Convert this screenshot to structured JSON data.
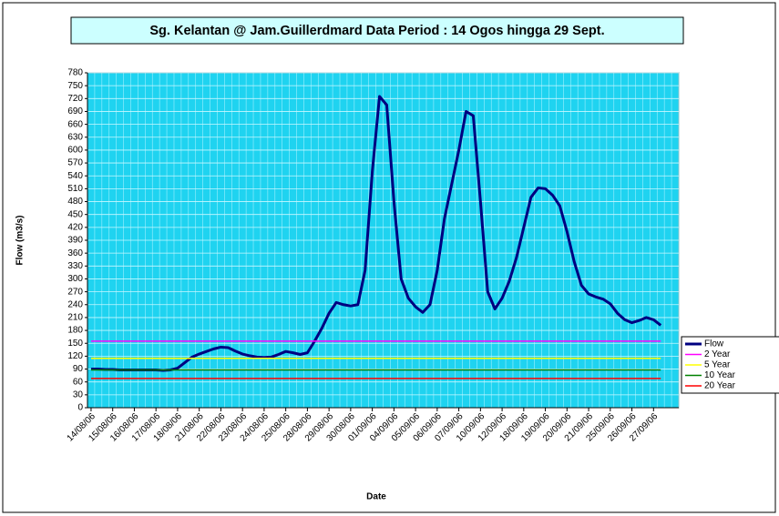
{
  "chart_data": {
    "type": "line",
    "title": "Sg. Kelantan @ Jam.Guillerdmard Data Period : 14 Ogos hingga 29 Sept.",
    "x_label": "Date",
    "y_label": "Flow (m3/s)",
    "categories": [
      "14/08/06",
      null,
      null,
      "15/08/06",
      null,
      null,
      "16/08/06",
      null,
      null,
      "17/08/06",
      null,
      null,
      "18/08/06",
      null,
      null,
      "21/08/06",
      null,
      null,
      "22/08/06",
      null,
      null,
      "23/08/06",
      null,
      null,
      "24/08/06",
      null,
      null,
      "25/08/06",
      null,
      null,
      "28/08/06",
      null,
      null,
      "29/08/06",
      null,
      null,
      "30/08/06",
      null,
      null,
      "01/09/06",
      null,
      null,
      "04/09/06",
      null,
      null,
      "05/09/06",
      null,
      null,
      "06/09/06",
      null,
      null,
      "07/09/06",
      null,
      null,
      "10/09/06",
      null,
      null,
      "12/09/06",
      null,
      null,
      "18/09/06",
      null,
      null,
      "19/09/06",
      null,
      null,
      "20/09/06",
      null,
      null,
      "21/09/06",
      null,
      null,
      "25/09/06",
      null,
      null,
      "26/09/06",
      null,
      null,
      "27/09/06",
      null,
      null,
      null
    ],
    "series": [
      {
        "name": "Flow",
        "color": "#000080",
        "values": [
          90,
          90,
          89,
          89,
          88,
          88,
          88,
          88,
          88,
          88,
          87,
          88,
          92,
          105,
          118,
          125,
          131,
          137,
          141,
          140,
          132,
          125,
          121,
          118,
          117,
          118,
          124,
          131,
          128,
          124,
          128,
          155,
          185,
          220,
          245,
          240,
          237,
          240,
          320,
          550,
          725,
          705,
          480,
          300,
          255,
          235,
          222,
          240,
          320,
          440,
          520,
          600,
          690,
          680,
          480,
          270,
          230,
          255,
          295,
          350,
          420,
          490,
          512,
          510,
          495,
          470,
          410,
          340,
          285,
          265,
          258,
          253,
          242,
          220,
          205,
          198,
          203,
          210,
          205,
          192,
          null,
          null
        ]
      },
      {
        "name": "2 Year",
        "color": "#ff00ff",
        "value": 155
      },
      {
        "name": "5 Year",
        "color": "#ffff00",
        "value": 115
      },
      {
        "name": "10 Year",
        "color": "#008000",
        "value": 88
      },
      {
        "name": "20 Year",
        "color": "#ff0000",
        "value": 68
      }
    ],
    "ylim": [
      0,
      780
    ],
    "yticks": [
      0,
      30,
      60,
      90,
      120,
      150,
      180,
      210,
      240,
      270,
      300,
      330,
      360,
      390,
      420,
      450,
      480,
      510,
      540,
      570,
      600,
      630,
      660,
      690,
      720,
      750,
      780
    ],
    "grid": true,
    "legend": "right"
  }
}
